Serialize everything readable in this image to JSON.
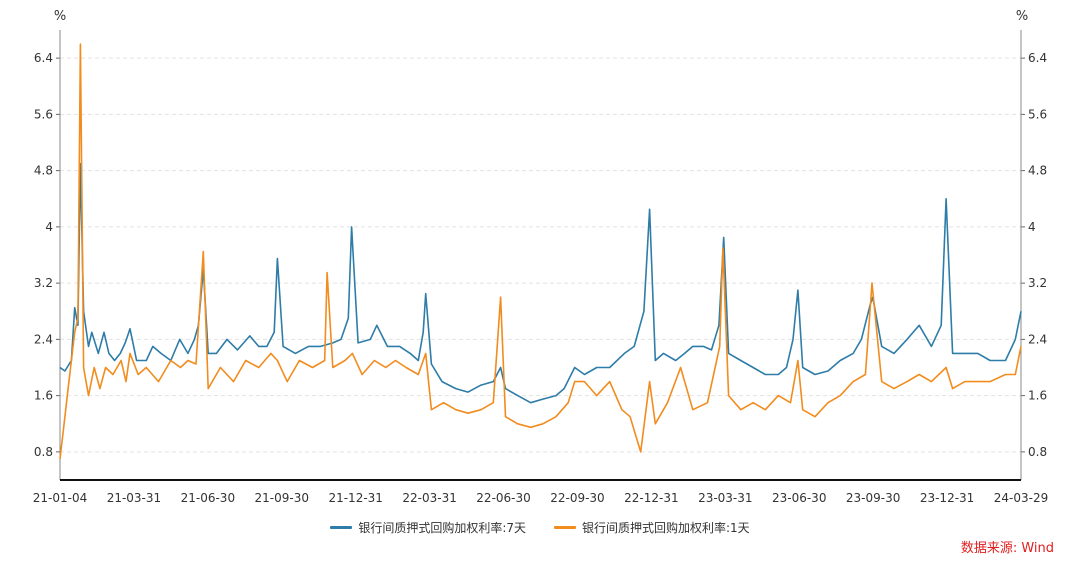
{
  "chart_data": {
    "type": "line",
    "left_axis_unit": "%",
    "right_axis_unit": "%",
    "ylim": [
      0.4,
      6.8
    ],
    "yticks": [
      0.8,
      1.6,
      2.4,
      3.2,
      4,
      4.8,
      5.6,
      6.4
    ],
    "x_tick_labels": [
      "21-01-04",
      "21-03-31",
      "21-06-30",
      "21-09-30",
      "21-12-31",
      "22-03-31",
      "22-06-30",
      "22-09-30",
      "22-12-31",
      "23-03-31",
      "23-06-30",
      "23-09-30",
      "23-12-31",
      "24-03-29"
    ],
    "x_range": [
      "2021-01-04",
      "2024-03-29"
    ],
    "grid": true,
    "legend_position": "bottom",
    "series": [
      {
        "name": "银行间质押式回购加权利率:7天",
        "color": "#2e7ca8",
        "points": [
          [
            "2021-01-04",
            2.0
          ],
          [
            "2021-01-10",
            1.95
          ],
          [
            "2021-01-18",
            2.1
          ],
          [
            "2021-01-22",
            2.85
          ],
          [
            "2021-01-26",
            2.6
          ],
          [
            "2021-01-29",
            4.9
          ],
          [
            "2021-02-02",
            2.8
          ],
          [
            "2021-02-08",
            2.3
          ],
          [
            "2021-02-12",
            2.5
          ],
          [
            "2021-02-20",
            2.2
          ],
          [
            "2021-02-27",
            2.5
          ],
          [
            "2021-03-05",
            2.2
          ],
          [
            "2021-03-12",
            2.1
          ],
          [
            "2021-03-19",
            2.2
          ],
          [
            "2021-03-25",
            2.35
          ],
          [
            "2021-03-31",
            2.55
          ],
          [
            "2021-04-08",
            2.1
          ],
          [
            "2021-04-20",
            2.1
          ],
          [
            "2021-04-28",
            2.3
          ],
          [
            "2021-05-08",
            2.2
          ],
          [
            "2021-05-20",
            2.1
          ],
          [
            "2021-05-31",
            2.4
          ],
          [
            "2021-06-10",
            2.2
          ],
          [
            "2021-06-18",
            2.4
          ],
          [
            "2021-06-23",
            2.6
          ],
          [
            "2021-06-29",
            3.4
          ],
          [
            "2021-07-05",
            2.2
          ],
          [
            "2021-07-15",
            2.2
          ],
          [
            "2021-07-28",
            2.4
          ],
          [
            "2021-08-10",
            2.25
          ],
          [
            "2021-08-25",
            2.45
          ],
          [
            "2021-09-05",
            2.3
          ],
          [
            "2021-09-15",
            2.3
          ],
          [
            "2021-09-24",
            2.5
          ],
          [
            "2021-09-28",
            3.55
          ],
          [
            "2021-10-05",
            2.3
          ],
          [
            "2021-10-20",
            2.2
          ],
          [
            "2021-11-05",
            2.3
          ],
          [
            "2021-11-20",
            2.3
          ],
          [
            "2021-12-05",
            2.35
          ],
          [
            "2021-12-15",
            2.4
          ],
          [
            "2021-12-24",
            2.7
          ],
          [
            "2021-12-28",
            4.0
          ],
          [
            "2022-01-05",
            2.35
          ],
          [
            "2022-01-20",
            2.4
          ],
          [
            "2022-01-28",
            2.6
          ],
          [
            "2022-02-10",
            2.3
          ],
          [
            "2022-02-25",
            2.3
          ],
          [
            "2022-03-10",
            2.2
          ],
          [
            "2022-03-20",
            2.1
          ],
          [
            "2022-03-26",
            2.5
          ],
          [
            "2022-03-29",
            3.05
          ],
          [
            "2022-04-05",
            2.05
          ],
          [
            "2022-04-18",
            1.8
          ],
          [
            "2022-05-05",
            1.7
          ],
          [
            "2022-05-20",
            1.65
          ],
          [
            "2022-06-05",
            1.75
          ],
          [
            "2022-06-20",
            1.8
          ],
          [
            "2022-06-29",
            2.0
          ],
          [
            "2022-07-05",
            1.7
          ],
          [
            "2022-07-20",
            1.6
          ],
          [
            "2022-08-05",
            1.5
          ],
          [
            "2022-08-20",
            1.55
          ],
          [
            "2022-09-05",
            1.6
          ],
          [
            "2022-09-15",
            1.7
          ],
          [
            "2022-09-28",
            2.0
          ],
          [
            "2022-10-10",
            1.9
          ],
          [
            "2022-10-25",
            2.0
          ],
          [
            "2022-11-10",
            2.0
          ],
          [
            "2022-11-28",
            2.2
          ],
          [
            "2022-12-10",
            2.3
          ],
          [
            "2022-12-22",
            2.8
          ],
          [
            "2022-12-29",
            4.25
          ],
          [
            "2023-01-05",
            2.1
          ],
          [
            "2023-01-15",
            2.2
          ],
          [
            "2023-01-30",
            2.1
          ],
          [
            "2023-02-10",
            2.2
          ],
          [
            "2023-02-20",
            2.3
          ],
          [
            "2023-03-05",
            2.3
          ],
          [
            "2023-03-15",
            2.25
          ],
          [
            "2023-03-24",
            2.6
          ],
          [
            "2023-03-30",
            3.85
          ],
          [
            "2023-04-05",
            2.2
          ],
          [
            "2023-04-20",
            2.1
          ],
          [
            "2023-05-05",
            2.0
          ],
          [
            "2023-05-20",
            1.9
          ],
          [
            "2023-06-05",
            1.9
          ],
          [
            "2023-06-15",
            2.0
          ],
          [
            "2023-06-23",
            2.4
          ],
          [
            "2023-06-29",
            3.1
          ],
          [
            "2023-07-05",
            2.0
          ],
          [
            "2023-07-20",
            1.9
          ],
          [
            "2023-08-05",
            1.95
          ],
          [
            "2023-08-20",
            2.1
          ],
          [
            "2023-09-05",
            2.2
          ],
          [
            "2023-09-15",
            2.4
          ],
          [
            "2023-09-26",
            2.9
          ],
          [
            "2023-09-29",
            3.0
          ],
          [
            "2023-10-10",
            2.3
          ],
          [
            "2023-10-25",
            2.2
          ],
          [
            "2023-11-10",
            2.4
          ],
          [
            "2023-11-25",
            2.6
          ],
          [
            "2023-12-10",
            2.3
          ],
          [
            "2023-12-22",
            2.6
          ],
          [
            "2023-12-28",
            4.4
          ],
          [
            "2024-01-05",
            2.2
          ],
          [
            "2024-01-20",
            2.2
          ],
          [
            "2024-02-05",
            2.2
          ],
          [
            "2024-02-20",
            2.1
          ],
          [
            "2024-03-10",
            2.1
          ],
          [
            "2024-03-22",
            2.4
          ],
          [
            "2024-03-29",
            2.8
          ]
        ]
      },
      {
        "name": "银行间质押式回购加权利率:1天",
        "color": "#f28c1e",
        "points": [
          [
            "2021-01-04",
            0.7
          ],
          [
            "2021-01-08",
            1.1
          ],
          [
            "2021-01-14",
            1.7
          ],
          [
            "2021-01-22",
            2.5
          ],
          [
            "2021-01-26",
            2.7
          ],
          [
            "2021-01-29",
            6.6
          ],
          [
            "2021-02-02",
            2.0
          ],
          [
            "2021-02-08",
            1.6
          ],
          [
            "2021-02-15",
            2.0
          ],
          [
            "2021-02-22",
            1.7
          ],
          [
            "2021-03-01",
            2.0
          ],
          [
            "2021-03-10",
            1.9
          ],
          [
            "2021-03-20",
            2.1
          ],
          [
            "2021-03-26",
            1.8
          ],
          [
            "2021-03-31",
            2.2
          ],
          [
            "2021-04-10",
            1.9
          ],
          [
            "2021-04-20",
            2.0
          ],
          [
            "2021-05-05",
            1.8
          ],
          [
            "2021-05-20",
            2.1
          ],
          [
            "2021-06-01",
            2.0
          ],
          [
            "2021-06-10",
            2.1
          ],
          [
            "2021-06-20",
            2.05
          ],
          [
            "2021-06-29",
            3.65
          ],
          [
            "2021-07-05",
            1.7
          ],
          [
            "2021-07-20",
            2.0
          ],
          [
            "2021-08-05",
            1.8
          ],
          [
            "2021-08-20",
            2.1
          ],
          [
            "2021-09-05",
            2.0
          ],
          [
            "2021-09-20",
            2.2
          ],
          [
            "2021-09-28",
            2.1
          ],
          [
            "2021-10-10",
            1.8
          ],
          [
            "2021-10-25",
            2.1
          ],
          [
            "2021-11-10",
            2.0
          ],
          [
            "2021-11-25",
            2.1
          ],
          [
            "2021-11-28",
            3.35
          ],
          [
            "2021-12-05",
            2.0
          ],
          [
            "2021-12-20",
            2.1
          ],
          [
            "2021-12-29",
            2.2
          ],
          [
            "2022-01-10",
            1.9
          ],
          [
            "2022-01-25",
            2.1
          ],
          [
            "2022-02-08",
            2.0
          ],
          [
            "2022-02-20",
            2.1
          ],
          [
            "2022-03-05",
            2.0
          ],
          [
            "2022-03-20",
            1.9
          ],
          [
            "2022-03-29",
            2.2
          ],
          [
            "2022-04-05",
            1.4
          ],
          [
            "2022-04-20",
            1.5
          ],
          [
            "2022-05-05",
            1.4
          ],
          [
            "2022-05-20",
            1.35
          ],
          [
            "2022-06-05",
            1.4
          ],
          [
            "2022-06-20",
            1.5
          ],
          [
            "2022-06-29",
            3.0
          ],
          [
            "2022-07-05",
            1.3
          ],
          [
            "2022-07-20",
            1.2
          ],
          [
            "2022-08-05",
            1.15
          ],
          [
            "2022-08-20",
            1.2
          ],
          [
            "2022-09-05",
            1.3
          ],
          [
            "2022-09-20",
            1.5
          ],
          [
            "2022-09-28",
            1.8
          ],
          [
            "2022-10-10",
            1.8
          ],
          [
            "2022-10-25",
            1.6
          ],
          [
            "2022-11-10",
            1.8
          ],
          [
            "2022-11-25",
            1.4
          ],
          [
            "2022-12-05",
            1.3
          ],
          [
            "2022-12-18",
            0.8
          ],
          [
            "2022-12-29",
            1.8
          ],
          [
            "2023-01-05",
            1.2
          ],
          [
            "2023-01-20",
            1.5
          ],
          [
            "2023-02-05",
            2.0
          ],
          [
            "2023-02-20",
            1.4
          ],
          [
            "2023-03-10",
            1.5
          ],
          [
            "2023-03-25",
            2.3
          ],
          [
            "2023-03-29",
            3.7
          ],
          [
            "2023-04-05",
            1.6
          ],
          [
            "2023-04-20",
            1.4
          ],
          [
            "2023-05-05",
            1.5
          ],
          [
            "2023-05-20",
            1.4
          ],
          [
            "2023-06-05",
            1.6
          ],
          [
            "2023-06-20",
            1.5
          ],
          [
            "2023-06-29",
            2.1
          ],
          [
            "2023-07-05",
            1.4
          ],
          [
            "2023-07-20",
            1.3
          ],
          [
            "2023-08-05",
            1.5
          ],
          [
            "2023-08-20",
            1.6
          ],
          [
            "2023-09-05",
            1.8
          ],
          [
            "2023-09-20",
            1.9
          ],
          [
            "2023-09-28",
            3.2
          ],
          [
            "2023-10-10",
            1.8
          ],
          [
            "2023-10-25",
            1.7
          ],
          [
            "2023-11-10",
            1.8
          ],
          [
            "2023-11-25",
            1.9
          ],
          [
            "2023-12-10",
            1.8
          ],
          [
            "2023-12-28",
            2.0
          ],
          [
            "2024-01-05",
            1.7
          ],
          [
            "2024-01-20",
            1.8
          ],
          [
            "2024-02-05",
            1.8
          ],
          [
            "2024-02-20",
            1.8
          ],
          [
            "2024-03-10",
            1.9
          ],
          [
            "2024-03-22",
            1.9
          ],
          [
            "2024-03-29",
            2.3
          ]
        ]
      }
    ]
  },
  "source_label": "数据来源: Wind"
}
